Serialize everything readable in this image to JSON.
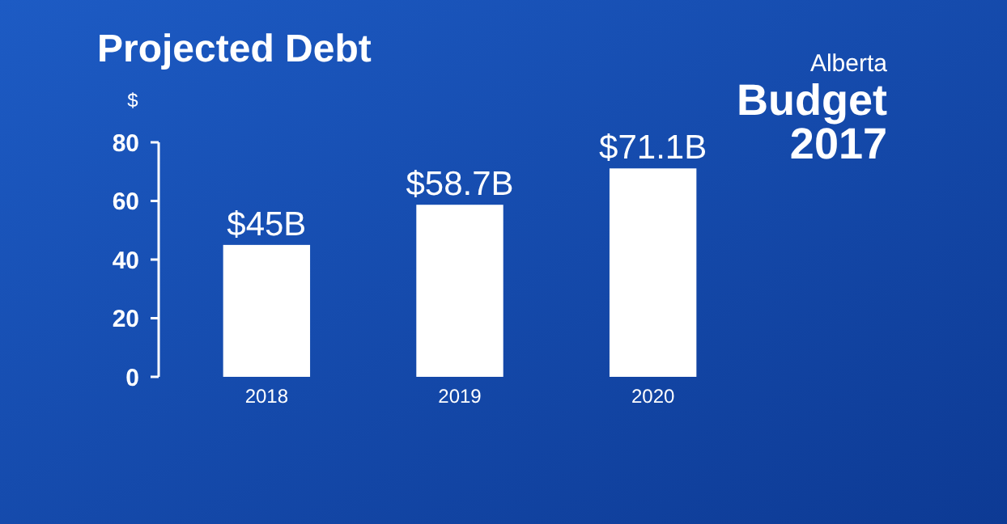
{
  "chart_data": {
    "type": "bar",
    "title": "Projected Debt",
    "ylabel": "$",
    "categories": [
      "2018",
      "2019",
      "2020"
    ],
    "values": [
      45,
      58.7,
      71.1
    ],
    "color": "#ffffff",
    "value_labels": [
      "$45B",
      "$58.7B",
      "$71.1B"
    ],
    "ylim": [
      0,
      80
    ],
    "yticks": [
      0,
      20,
      40,
      60,
      80
    ],
    "grid": false,
    "annotations": [
      "Alberta Budget 2017"
    ]
  }
}
